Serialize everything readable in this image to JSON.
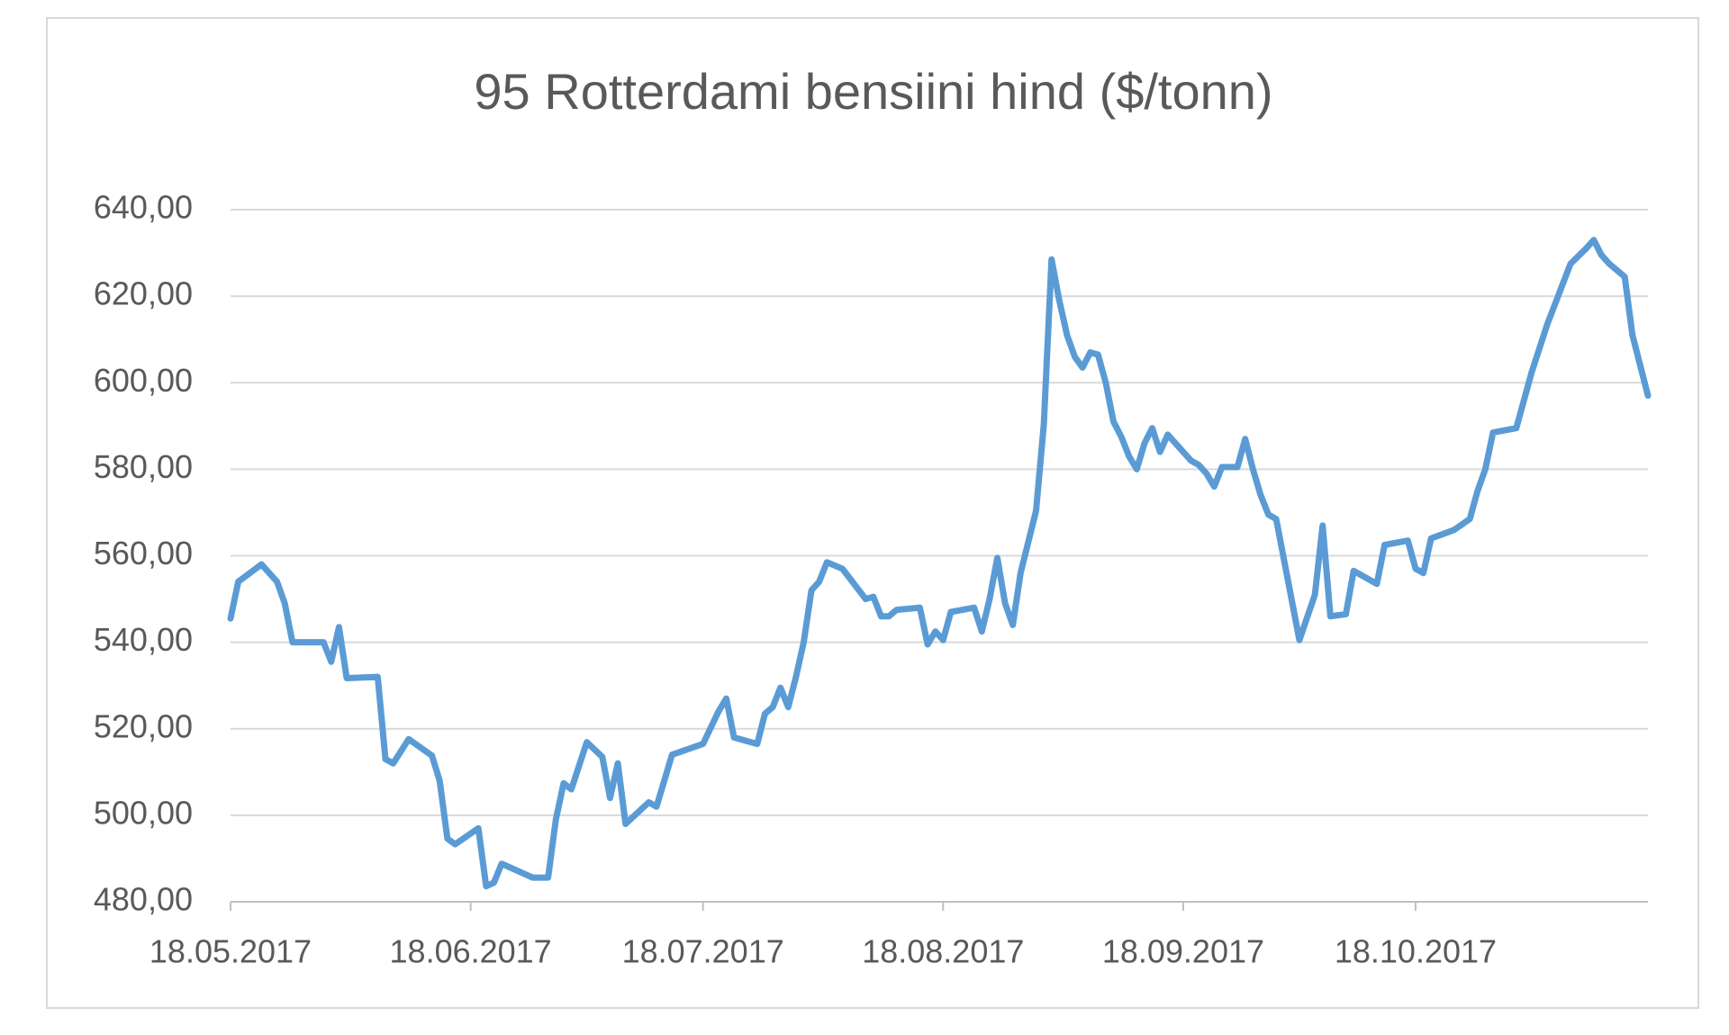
{
  "chart_data": {
    "type": "line",
    "title": "95 Rotterdami bensiini hind ($/tonn)",
    "color": "#5b9bd5",
    "grid": true,
    "ylim": [
      480,
      640
    ],
    "yticks": [
      {
        "value": 480,
        "label": "480,00"
      },
      {
        "value": 500,
        "label": "500,00"
      },
      {
        "value": 520,
        "label": "520,00"
      },
      {
        "value": 540,
        "label": "540,00"
      },
      {
        "value": 560,
        "label": "560,00"
      },
      {
        "value": 580,
        "label": "580,00"
      },
      {
        "value": 600,
        "label": "600,00"
      },
      {
        "value": 620,
        "label": "620,00"
      },
      {
        "value": 640,
        "label": "640,00"
      }
    ],
    "xlim": [
      "2017-05-18",
      "2017-11-17"
    ],
    "xticks": [
      {
        "value": "2017-05-18",
        "label": "18.05.2017"
      },
      {
        "value": "2017-06-18",
        "label": "18.06.2017"
      },
      {
        "value": "2017-07-18",
        "label": "18.07.2017"
      },
      {
        "value": "2017-08-18",
        "label": "18.08.2017"
      },
      {
        "value": "2017-09-18",
        "label": "18.09.2017"
      },
      {
        "value": "2017-10-18",
        "label": "18.10.2017"
      }
    ],
    "x": [
      "2017-05-18",
      "2017-05-19",
      "2017-05-22",
      "2017-05-24",
      "2017-05-25",
      "2017-05-26",
      "2017-05-30",
      "2017-05-31",
      "2017-06-01",
      "2017-06-02",
      "2017-06-06",
      "2017-06-07",
      "2017-06-08",
      "2017-06-10",
      "2017-06-13",
      "2017-06-14",
      "2017-06-15",
      "2017-06-16",
      "2017-06-19",
      "2017-06-20",
      "2017-06-21",
      "2017-06-22",
      "2017-06-26",
      "2017-06-28",
      "2017-06-29",
      "2017-06-30",
      "2017-07-01",
      "2017-07-03",
      "2017-07-05",
      "2017-07-06",
      "2017-07-07",
      "2017-07-08",
      "2017-07-11",
      "2017-07-12",
      "2017-07-14",
      "2017-07-18",
      "2017-07-20",
      "2017-07-21",
      "2017-07-22",
      "2017-07-25",
      "2017-07-26",
      "2017-07-27",
      "2017-07-28",
      "2017-07-29",
      "2017-07-30",
      "2017-07-31",
      "2017-08-01",
      "2017-08-02",
      "2017-08-03",
      "2017-08-05",
      "2017-08-08",
      "2017-08-09",
      "2017-08-10",
      "2017-08-11",
      "2017-08-12",
      "2017-08-15",
      "2017-08-16",
      "2017-08-17",
      "2017-08-18",
      "2017-08-19",
      "2017-08-22",
      "2017-08-23",
      "2017-08-24",
      "2017-08-25",
      "2017-08-26",
      "2017-08-27",
      "2017-08-28",
      "2017-08-30",
      "2017-08-31",
      "2017-09-01",
      "2017-09-02",
      "2017-09-03",
      "2017-09-04",
      "2017-09-05",
      "2017-09-06",
      "2017-09-07",
      "2017-09-08",
      "2017-09-09",
      "2017-09-10",
      "2017-09-11",
      "2017-09-12",
      "2017-09-13",
      "2017-09-14",
      "2017-09-15",
      "2017-09-16",
      "2017-09-19",
      "2017-09-20",
      "2017-09-21",
      "2017-09-22",
      "2017-09-23",
      "2017-09-25",
      "2017-09-26",
      "2017-09-27",
      "2017-09-28",
      "2017-09-29",
      "2017-09-30",
      "2017-10-03",
      "2017-10-05",
      "2017-10-06",
      "2017-10-07",
      "2017-10-09",
      "2017-10-10",
      "2017-10-13",
      "2017-10-14",
      "2017-10-17",
      "2017-10-18",
      "2017-10-19",
      "2017-10-20",
      "2017-10-23",
      "2017-10-25",
      "2017-10-26",
      "2017-10-27",
      "2017-10-28",
      "2017-10-31",
      "2017-11-02",
      "2017-11-04",
      "2017-11-07",
      "2017-11-09",
      "2017-11-10",
      "2017-11-11",
      "2017-11-12",
      "2017-11-14",
      "2017-11-15",
      "2017-11-17"
    ],
    "values": [
      545.5,
      554,
      558,
      554,
      549,
      540,
      540,
      535.5,
      543.5,
      531.7,
      532,
      513,
      512,
      517.6,
      513.8,
      508,
      494.6,
      493.3,
      497,
      483.6,
      484.4,
      488.8,
      485.6,
      485.6,
      499,
      507.4,
      506,
      516.9,
      513.5,
      504,
      512,
      498,
      503,
      502,
      514,
      516.5,
      524,
      527,
      518,
      516.5,
      523.5,
      525,
      529.5,
      525,
      532,
      540,
      552,
      554,
      558.5,
      557,
      550,
      550.5,
      546,
      546,
      547.5,
      548,
      539.5,
      542.5,
      540.5,
      547,
      548,
      542.5,
      550,
      559.5,
      549,
      544,
      556,
      570.4,
      590.3,
      628.5,
      619,
      611,
      606,
      603.5,
      607,
      606.5,
      600,
      591,
      587.5,
      583,
      580,
      586,
      589.5,
      584,
      588,
      582,
      581,
      579,
      576,
      580.5,
      580.5,
      587,
      580,
      574,
      569.5,
      568.5,
      540.5,
      551,
      567,
      546,
      546.5,
      556.5,
      553.5,
      562.5,
      563.5,
      557,
      556,
      564,
      566,
      568.5,
      575,
      580,
      588.5,
      589.5,
      602.5,
      613.5,
      627.5,
      631,
      633,
      629.5,
      627.5,
      624.5,
      611,
      597
    ]
  }
}
